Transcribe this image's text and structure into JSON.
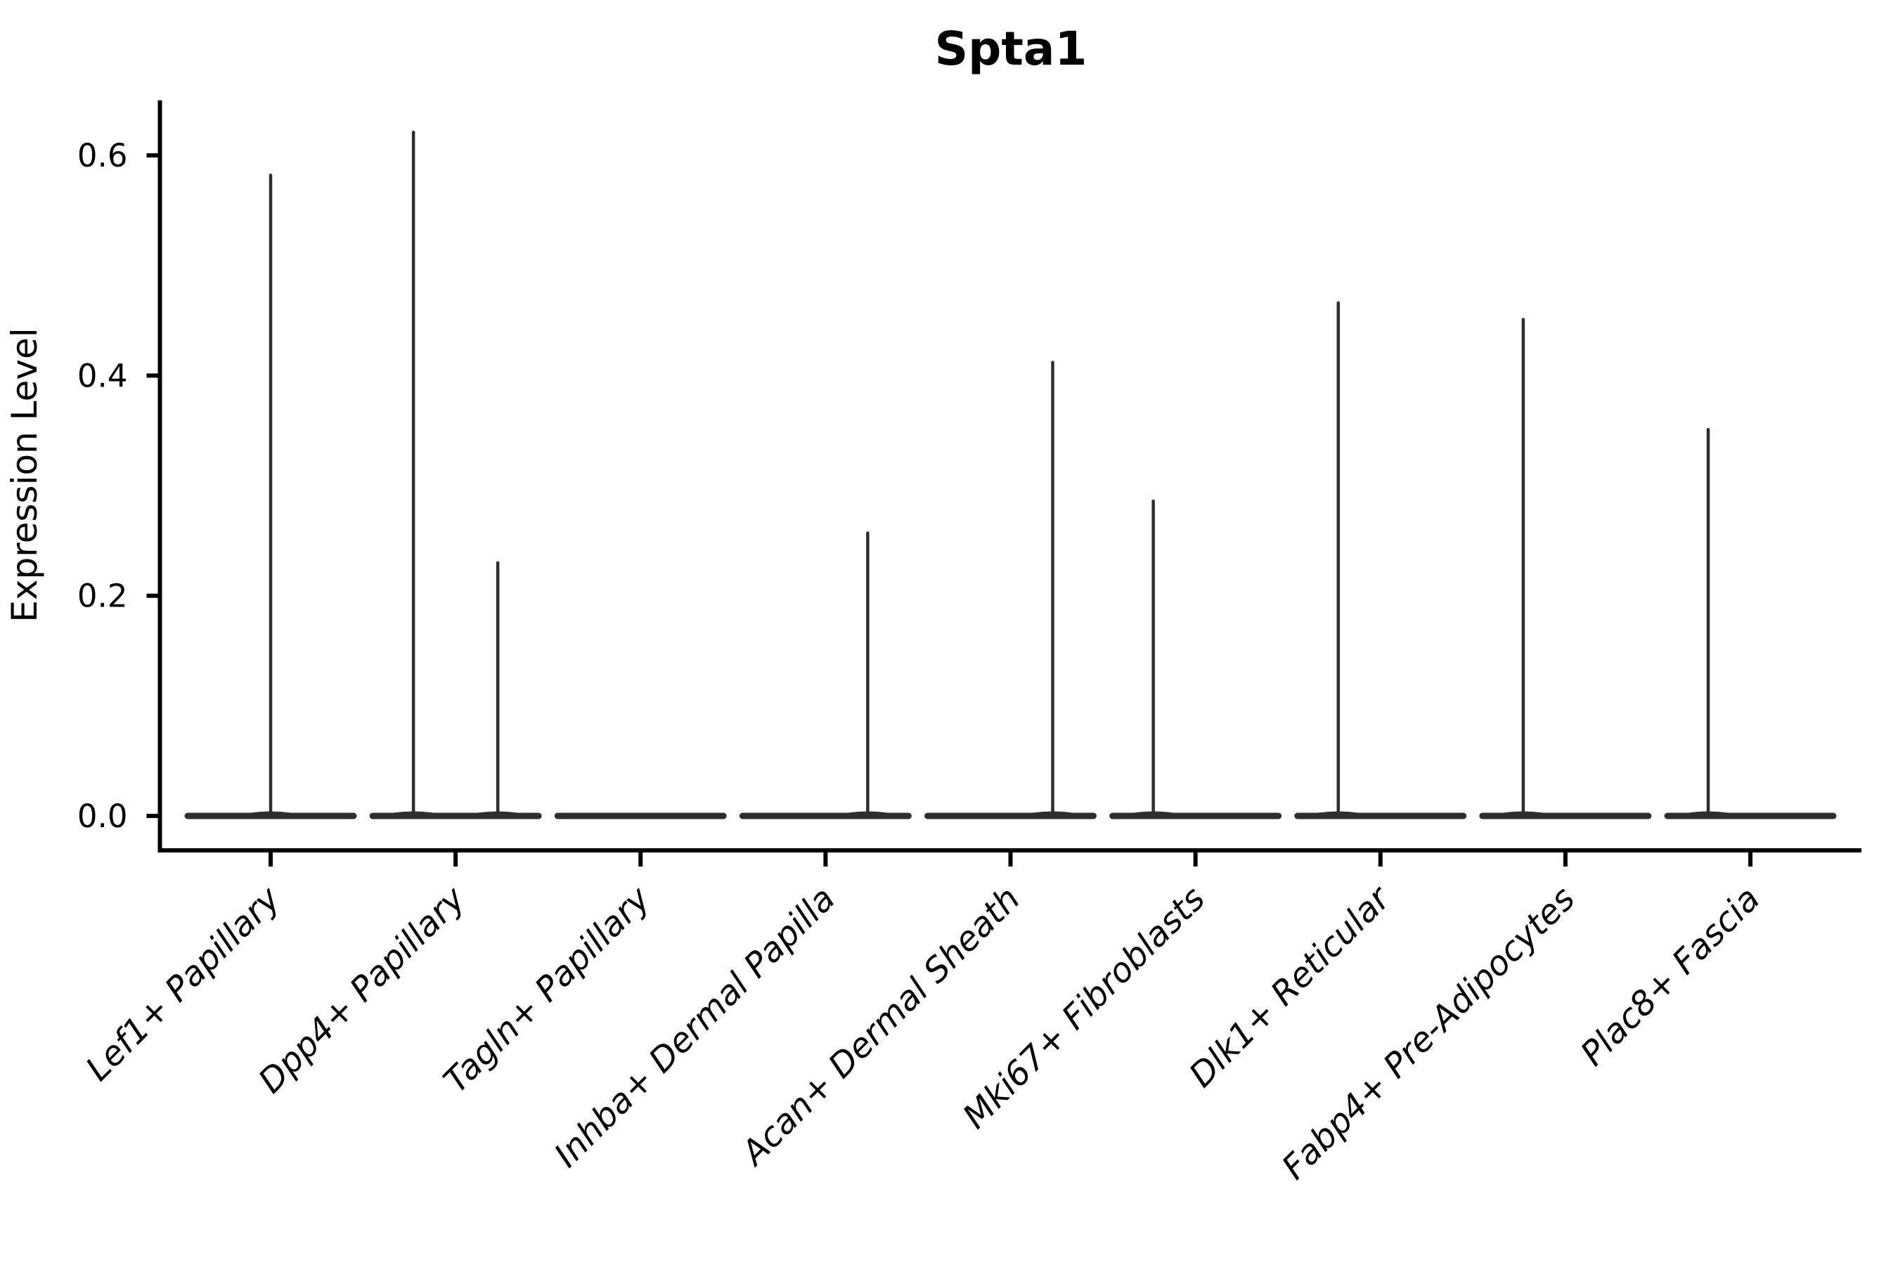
{
  "title": "Spta1",
  "colors": {
    "violin_line": "#2e2e2e",
    "axis": "#000000",
    "text": "#000000",
    "background": "#ffffff"
  },
  "chart_data": {
    "type": "violin",
    "title": "Spta1",
    "xlabel": "",
    "ylabel": "Expression Level",
    "yticks": [
      0.0,
      0.2,
      0.4,
      0.6
    ],
    "ytick_labels": [
      "0.0",
      "0.2",
      "0.4",
      "0.6"
    ],
    "ylim": [
      -0.031,
      0.65
    ],
    "grid": false,
    "legend": "none",
    "description": "Violin plot of Spta1 expression per fibroblast cluster; nearly all cells at 0 (flat violins) with thin density spikes up to the max expressing cell. Spike offset is the dodge position within the category slot (category units).",
    "categories": [
      "Lef1+ Papillary",
      "Dpp4+ Papillary",
      "Tagln+ Papillary",
      "Inhba+ Dermal Papilla",
      "Acan+ Dermal Sheath",
      "Mki67+ Fibroblasts",
      "Dlk1+ Reticular",
      "Fabp4+ Pre-Adipocytes",
      "Plac8+ Fascia"
    ],
    "series": [
      {
        "label": "Lef1+ Papillary",
        "spikes": [
          {
            "offset": 0,
            "max": 0.582
          }
        ]
      },
      {
        "label": "Dpp4+ Papillary",
        "spikes": [
          {
            "offset": -0.228,
            "max": 0.621
          },
          {
            "offset": 0.228,
            "max": 0.23
          }
        ]
      },
      {
        "label": "Tagln+ Papillary",
        "spikes": []
      },
      {
        "label": "Inhba+ Dermal Papilla",
        "spikes": [
          {
            "offset": 0.228,
            "max": 0.257
          }
        ]
      },
      {
        "label": "Acan+ Dermal Sheath",
        "spikes": [
          {
            "offset": 0.228,
            "max": 0.412
          }
        ]
      },
      {
        "label": "Mki67+ Fibroblasts",
        "spikes": [
          {
            "offset": -0.228,
            "max": 0.286
          }
        ]
      },
      {
        "label": "Dlk1+ Reticular",
        "spikes": [
          {
            "offset": -0.228,
            "max": 0.466
          }
        ]
      },
      {
        "label": "Fabp4+ Pre-Adipocytes",
        "spikes": [
          {
            "offset": -0.228,
            "max": 0.451
          }
        ]
      },
      {
        "label": "Plac8+ Fascia",
        "spikes": [
          {
            "offset": -0.228,
            "max": 0.351
          }
        ]
      }
    ]
  }
}
